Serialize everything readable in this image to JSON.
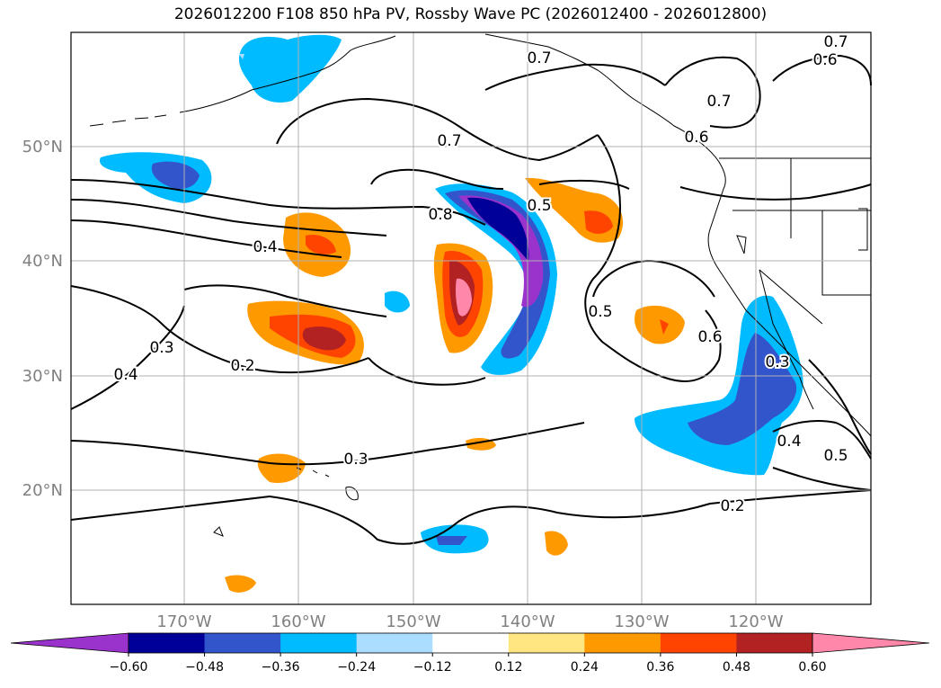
{
  "title": "2026012200 F108 850 hPa PV, Rossby Wave PC (2026012400 - 2026012800)",
  "lat_labels": [
    "50°N",
    "40°N",
    "30°N",
    "20°N"
  ],
  "lon_labels": [
    "170°W",
    "160°W",
    "150°W",
    "140°W",
    "130°W",
    "120°W"
  ],
  "contour_labels": [
    "0.7",
    "0.7",
    "0.7",
    "0.7",
    "0.6",
    "0.6",
    "0.8",
    "0.5",
    "0.4",
    "0.3",
    "0.4",
    "0.2",
    "0.5",
    "0.6",
    "0.3",
    "0.3",
    "0.4",
    "0.5",
    "0.2"
  ],
  "colorbar": {
    "ticks": [
      "−0.60",
      "−0.48",
      "−0.36",
      "−0.24",
      "−0.12",
      "0.12",
      "0.24",
      "0.36",
      "0.48",
      "0.60"
    ],
    "colors": [
      "#9933cc",
      "#000099",
      "#3355cc",
      "#00bbff",
      "#aaddff",
      "#ffffff",
      "#ffe680",
      "#ff9900",
      "#ff4400",
      "#b22222",
      "#ff88aa"
    ]
  },
  "colors": {
    "land_outline": "#000000",
    "grid": "#b0b0b0",
    "axis_label": "#808080"
  }
}
